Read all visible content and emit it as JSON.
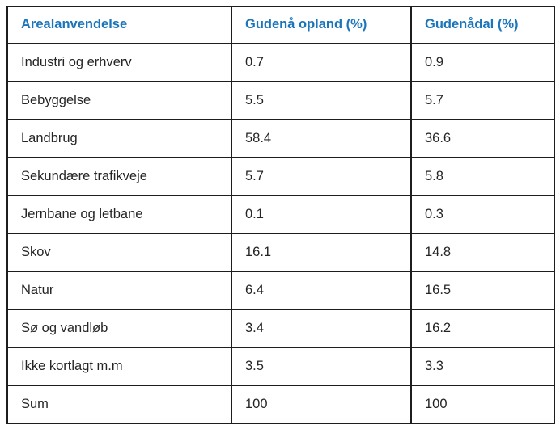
{
  "table": {
    "columns": [
      {
        "label": "Arealanvendelse"
      },
      {
        "label": "Gudenå opland (%)"
      },
      {
        "label": "Gudenådal (%)"
      }
    ],
    "rows": [
      {
        "label": "Industri og erhverv",
        "opland": "0.7",
        "aadal": "0.9"
      },
      {
        "label": "Bebyggelse",
        "opland": "5.5",
        "aadal": "5.7"
      },
      {
        "label": "Landbrug",
        "opland": "58.4",
        "aadal": "36.6"
      },
      {
        "label": "Sekundære trafikveje",
        "opland": "5.7",
        "aadal": "5.8"
      },
      {
        "label": "Jernbane og letbane",
        "opland": "0.1",
        "aadal": "0.3"
      },
      {
        "label": "Skov",
        "opland": "16.1",
        "aadal": "14.8"
      },
      {
        "label": "Natur",
        "opland": "6.4",
        "aadal": "16.5"
      },
      {
        "label": "Sø og vandløb",
        "opland": "3.4",
        "aadal": "16.2"
      },
      {
        "label": "Ikke kortlagt m.m",
        "opland": "3.5",
        "aadal": "3.3"
      },
      {
        "label": "Sum",
        "opland": "100",
        "aadal": "100"
      }
    ]
  },
  "colors": {
    "header_text": "#1b75bb",
    "body_text": "#262424",
    "border": "#1d1d1b",
    "background": "#ffffff"
  }
}
